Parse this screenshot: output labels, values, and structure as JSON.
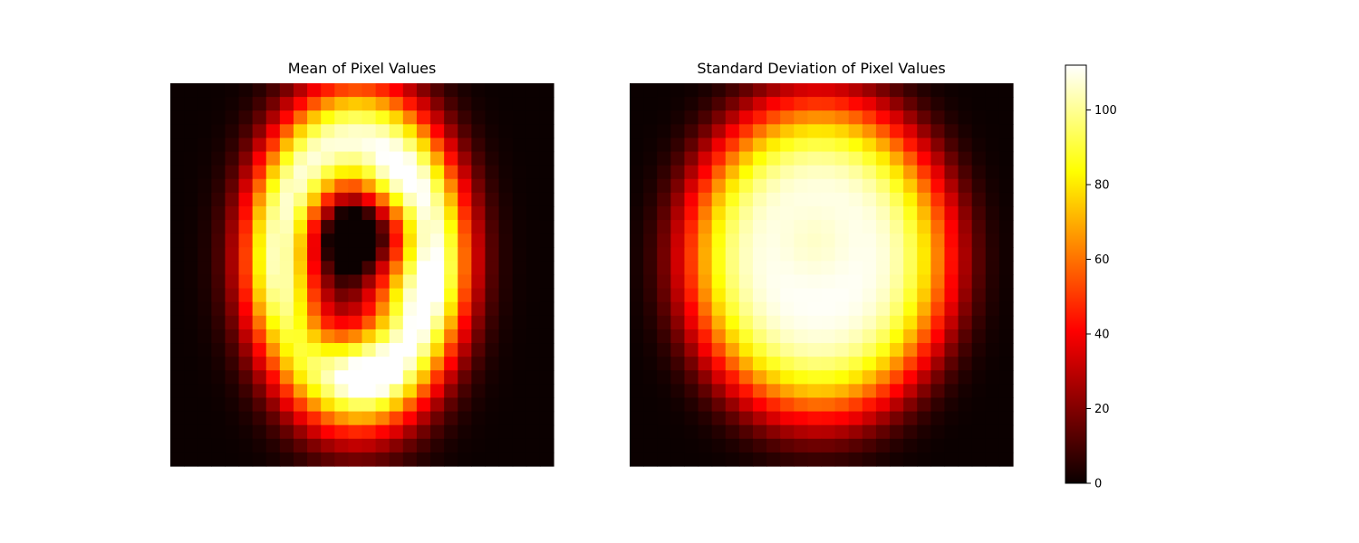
{
  "chart_data": [
    {
      "type": "heatmap",
      "title": "Mean of Pixel Values",
      "xlabel": "",
      "ylabel": "",
      "axes": "off",
      "colormap": "hot",
      "vmin": 0,
      "vmax": 112,
      "rows": 28,
      "cols": 28,
      "model": {
        "description": "approximate digit-average intensity field",
        "shape": "ring",
        "cx": 13.6,
        "cy": 12.8,
        "rx": 5.6,
        "ry": 8.6,
        "width": 2.9,
        "peak": 108,
        "spots": [
          {
            "x": 15.8,
            "y": 7.4,
            "amp": 18,
            "s": 1.6
          },
          {
            "x": 16.3,
            "y": 14.8,
            "amp": 28,
            "s": 2.1
          },
          {
            "x": 14.6,
            "y": 21.3,
            "amp": 20,
            "s": 1.8
          }
        ],
        "dips": [
          {
            "x": 13.3,
            "y": 10.9,
            "amp": 38,
            "s": 2.0
          },
          {
            "x": 10.8,
            "y": 18.2,
            "amp": 24,
            "s": 2.1
          }
        ]
      }
    },
    {
      "type": "heatmap",
      "title": "Standard Deviation of Pixel Values",
      "xlabel": "",
      "ylabel": "",
      "axes": "off",
      "colormap": "hot",
      "vmin": 0,
      "vmax": 112,
      "rows": 28,
      "cols": 28,
      "model": {
        "description": "approximate per-pixel std field",
        "shape": "plateau",
        "cx": 13.8,
        "cy": 12.8,
        "rx": 9.8,
        "ry": 11.8,
        "power": 4.5,
        "peak": 112,
        "spots": [],
        "dips": [
          {
            "x": 13.5,
            "y": 11.5,
            "amp": 6,
            "s": 2.0
          }
        ]
      }
    }
  ],
  "colorbar": {
    "ticks": [
      0,
      20,
      40,
      60,
      80,
      100
    ],
    "tick_labels": [
      "0",
      "20",
      "40",
      "60",
      "80",
      "100"
    ],
    "vmin": 0,
    "vmax": 112,
    "colormap": "hot"
  }
}
